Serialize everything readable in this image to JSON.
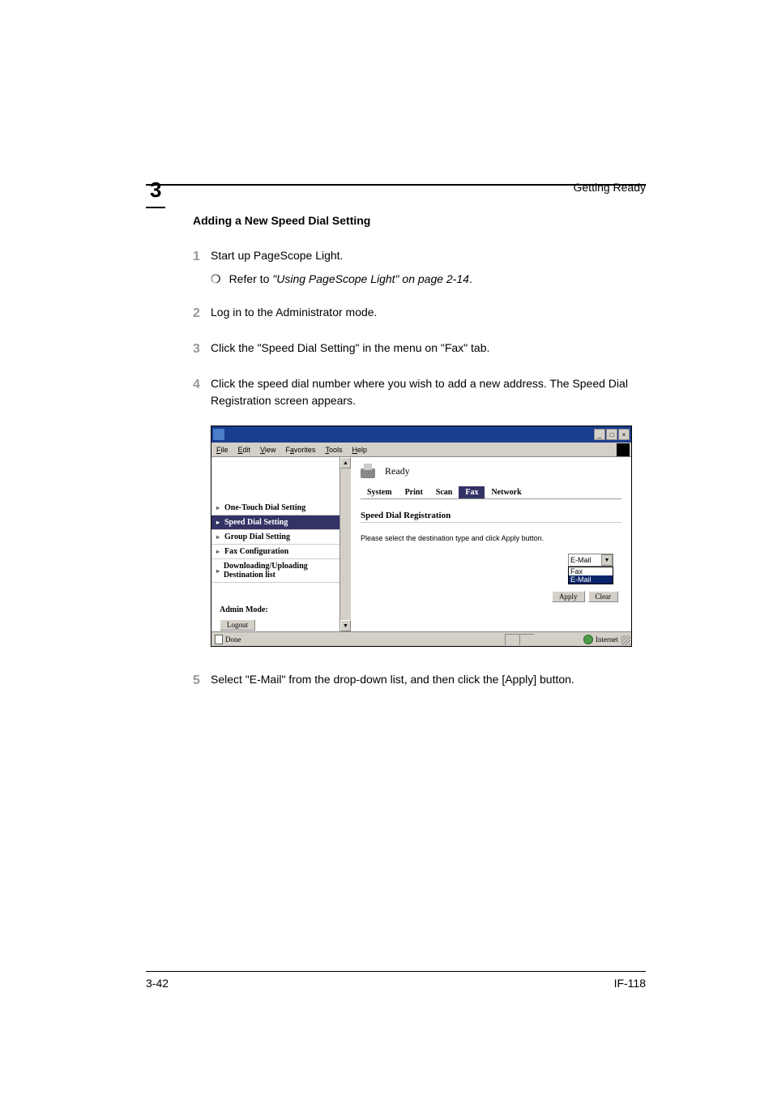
{
  "header": {
    "chapter_number": "3",
    "label": "Getting Ready"
  },
  "section": {
    "title": "Adding a New Speed Dial Setting"
  },
  "steps": [
    {
      "num": "1",
      "text": "Start up PageScope Light.",
      "sub_prefix": "Refer to ",
      "sub_italic": "\"Using PageScope Light\" on page 2-14",
      "sub_suffix": "."
    },
    {
      "num": "2",
      "text": "Log in to the Administrator mode."
    },
    {
      "num": "3",
      "text": "Click the  \"Speed Dial Setting\" in the menu on \"Fax\" tab."
    },
    {
      "num": "4",
      "text": "Click the speed dial number where you wish to add a new address. The Speed Dial Registration screen appears."
    },
    {
      "num": "5",
      "text": "Select \"E-Mail\" from the drop-down list, and then click the [Apply] button."
    }
  ],
  "screenshot": {
    "menubar": [
      "File",
      "Edit",
      "View",
      "Favorites",
      "Tools",
      "Help"
    ],
    "menubar_underline": [
      "F",
      "E",
      "V",
      "a",
      "T",
      "H"
    ],
    "ready_text": "Ready",
    "tabs": [
      "System",
      "Print",
      "Scan",
      "Fax",
      "Network"
    ],
    "active_tab": "Fax",
    "sidebar_items": [
      "One-Touch Dial Setting",
      "Speed Dial Setting",
      "Group Dial Setting",
      "Fax Configuration",
      "Downloading/Uploading Destination list"
    ],
    "active_sidebar": "Speed Dial Setting",
    "admin_label": "Admin Mode:",
    "logout_label": "Logout",
    "main_title": "Speed Dial Registration",
    "instruction": "Please select the destination type and click Apply button.",
    "dropdown_value": "E-Mail",
    "dropdown_options": [
      "Fax",
      "E-Mail"
    ],
    "dropdown_selected": "E-Mail",
    "apply_label": "Apply",
    "clear_label": "Clear",
    "status_done": "Done",
    "status_zone": "Internet"
  },
  "footer": {
    "left": "3-42",
    "right": "IF-118"
  }
}
